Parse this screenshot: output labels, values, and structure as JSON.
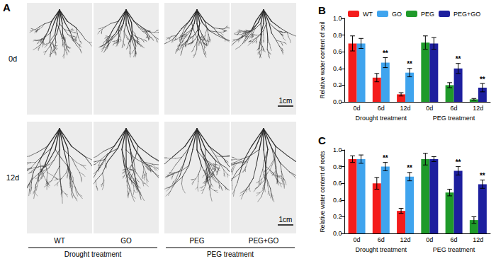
{
  "panel_a": {
    "label": "A",
    "rows": [
      "0d",
      "12d"
    ],
    "columns": [
      "WT",
      "GO",
      "PEG",
      "PEG+GO"
    ],
    "groups": [
      "Drought treatment",
      "PEG treatment"
    ],
    "scale_bar": "1cm"
  },
  "chart_data": [
    {
      "type": "bar",
      "title": "B",
      "y_label": "Relative water content of soil",
      "categories": [
        "0d",
        "6d",
        "12d",
        "0d",
        "6d",
        "12d"
      ],
      "group_labels": [
        "Drought treatment",
        "PEG treatment"
      ],
      "series": [
        {
          "name": "WT",
          "color": "#f41c1c",
          "values": [
            0.7,
            0.29,
            0.09,
            null,
            null,
            null
          ],
          "errors": [
            0.09,
            0.05,
            0.02,
            null,
            null,
            null
          ],
          "significance": [
            null,
            null,
            null,
            null,
            null,
            null
          ]
        },
        {
          "name": "GO",
          "color": "#3fa4ee",
          "values": [
            0.7,
            0.47,
            0.35,
            null,
            null,
            null
          ],
          "errors": [
            0.06,
            0.06,
            0.05,
            null,
            null,
            null
          ],
          "significance": [
            null,
            "**",
            "**",
            null,
            null,
            null
          ]
        },
        {
          "name": "PEG",
          "color": "#1f9a2a",
          "values": [
            null,
            null,
            null,
            0.71,
            0.2,
            0.03
          ],
          "errors": [
            null,
            null,
            null,
            0.08,
            0.03,
            0.01
          ],
          "significance": [
            null,
            null,
            null,
            null,
            null,
            null
          ]
        },
        {
          "name": "PEG+GO",
          "color": "#1d1f9e",
          "values": [
            null,
            null,
            null,
            0.7,
            0.4,
            0.17
          ],
          "errors": [
            null,
            null,
            null,
            0.07,
            0.06,
            0.05
          ],
          "significance": [
            null,
            null,
            null,
            null,
            "**",
            "**"
          ]
        }
      ],
      "ylim": [
        0,
        1.0
      ],
      "yticks": [
        {
          "value": 0,
          "label": "0.0"
        },
        {
          "value": 0.2,
          "label": "0.2"
        },
        {
          "value": 0.4,
          "label": "0.4"
        },
        {
          "value": 0.6,
          "label": "0.6"
        },
        {
          "value": 0.8,
          "label": "0.8"
        },
        {
          "value": 1.0,
          "label": "1.0"
        }
      ],
      "grid": false,
      "legend": "top"
    },
    {
      "type": "bar",
      "title": "C",
      "y_label": "Relative water content of roots",
      "categories": [
        "0d",
        "6d",
        "12d",
        "0d",
        "6d",
        "12d"
      ],
      "group_labels": [
        "Drought treatment",
        "PEG treatment"
      ],
      "series": [
        {
          "name": "WT",
          "color": "#f41c1c",
          "values": [
            0.89,
            0.6,
            0.27,
            null,
            null,
            null
          ],
          "errors": [
            0.04,
            0.07,
            0.03,
            null,
            null,
            null
          ],
          "significance": [
            null,
            null,
            null,
            null,
            null,
            null
          ]
        },
        {
          "name": "GO",
          "color": "#3fa4ee",
          "values": [
            0.89,
            0.8,
            0.68,
            null,
            null,
            null
          ],
          "errors": [
            0.05,
            0.05,
            0.05,
            null,
            null,
            null
          ],
          "significance": [
            null,
            "**",
            "**",
            null,
            null,
            null
          ]
        },
        {
          "name": "PEG",
          "color": "#1f9a2a",
          "values": [
            null,
            null,
            null,
            0.89,
            0.49,
            0.16
          ],
          "errors": [
            null,
            null,
            null,
            0.07,
            0.04,
            0.04
          ],
          "significance": [
            null,
            null,
            null,
            null,
            null,
            null
          ]
        },
        {
          "name": "PEG+GO",
          "color": "#1d1f9e",
          "values": [
            null,
            null,
            null,
            0.89,
            0.75,
            0.59
          ],
          "errors": [
            null,
            null,
            null,
            0.03,
            0.05,
            0.05
          ],
          "significance": [
            null,
            null,
            null,
            null,
            "**",
            "**"
          ]
        }
      ],
      "ylim": [
        0,
        1.0
      ],
      "yticks": [
        {
          "value": 0,
          "label": "0.0"
        },
        {
          "value": 0.2,
          "label": "0.2"
        },
        {
          "value": 0.4,
          "label": "0.4"
        },
        {
          "value": 0.6,
          "label": "0.6"
        },
        {
          "value": 0.8,
          "label": "0.8"
        },
        {
          "value": 1.0,
          "label": "1.0"
        }
      ],
      "grid": false
    }
  ]
}
